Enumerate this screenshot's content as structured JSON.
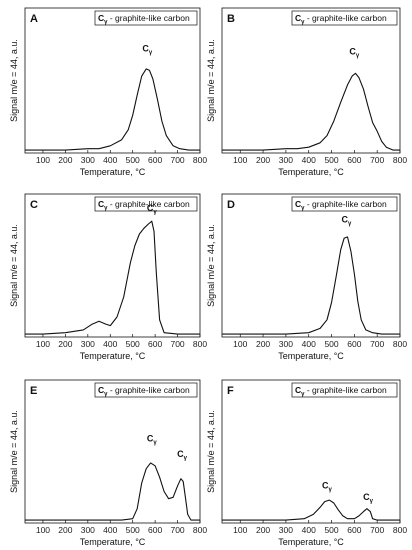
{
  "chart_data": [
    {
      "panel": "A",
      "type": "line",
      "legend": {
        "main": "C",
        "sub": "γ",
        "rest": " - graphite-like carbon"
      },
      "xlabel": "Temperature, °C",
      "ylabel": "Signal m/e = 44, a.u.",
      "xlim": [
        20,
        800
      ],
      "ylim": [
        0,
        1
      ],
      "xticks": [
        100,
        200,
        300,
        400,
        500,
        600,
        700,
        800
      ],
      "peak_labels": [
        {
          "main": "C",
          "sub": "γ",
          "x": 565,
          "y": 0.7
        }
      ],
      "series": [
        {
          "x": [
            20,
            100,
            200,
            300,
            350,
            400,
            450,
            480,
            500,
            520,
            540,
            560,
            575,
            590,
            610,
            630,
            650,
            680,
            710,
            750,
            800
          ],
          "y": [
            0.02,
            0.02,
            0.02,
            0.03,
            0.03,
            0.05,
            0.09,
            0.16,
            0.26,
            0.4,
            0.53,
            0.58,
            0.57,
            0.51,
            0.37,
            0.22,
            0.12,
            0.05,
            0.03,
            0.02,
            0.02
          ]
        }
      ]
    },
    {
      "panel": "B",
      "type": "line",
      "legend": {
        "main": "C",
        "sub": "γ",
        "rest": " - graphite-like carbon"
      },
      "xlabel": "Temperature, °C",
      "ylabel": "Signal m/e = 44, a.u.",
      "xlim": [
        20,
        800
      ],
      "ylim": [
        0,
        1
      ],
      "xticks": [
        100,
        200,
        300,
        400,
        500,
        600,
        700,
        800
      ],
      "peak_labels": [
        {
          "main": "C",
          "sub": "γ",
          "x": 600,
          "y": 0.68
        }
      ],
      "series": [
        {
          "x": [
            20,
            100,
            200,
            300,
            350,
            400,
            450,
            480,
            510,
            540,
            570,
            590,
            605,
            620,
            640,
            660,
            680,
            700,
            720,
            740,
            770,
            800
          ],
          "y": [
            0.02,
            0.02,
            0.02,
            0.03,
            0.03,
            0.04,
            0.07,
            0.12,
            0.22,
            0.35,
            0.47,
            0.53,
            0.55,
            0.52,
            0.44,
            0.32,
            0.21,
            0.15,
            0.08,
            0.04,
            0.02,
            0.02
          ]
        }
      ]
    },
    {
      "panel": "C",
      "type": "line",
      "legend": {
        "main": "C",
        "sub": "γ",
        "rest": " - graphite-like carbon"
      },
      "xlabel": "Temperature, °C",
      "ylabel": "Signal m/e = 44, a.u.",
      "xlim": [
        20,
        800
      ],
      "ylim": [
        0,
        1
      ],
      "xticks": [
        100,
        200,
        300,
        400,
        500,
        600,
        700,
        800
      ],
      "peak_labels": [
        {
          "main": "C",
          "sub": "γ",
          "x": 585,
          "y": 0.88
        }
      ],
      "series": [
        {
          "x": [
            20,
            100,
            200,
            280,
            320,
            350,
            380,
            400,
            430,
            460,
            490,
            510,
            530,
            550,
            570,
            585,
            595,
            605,
            620,
            640,
            700,
            800
          ],
          "y": [
            0.02,
            0.02,
            0.03,
            0.05,
            0.09,
            0.11,
            0.09,
            0.08,
            0.14,
            0.28,
            0.52,
            0.64,
            0.72,
            0.76,
            0.79,
            0.81,
            0.74,
            0.45,
            0.12,
            0.03,
            0.02,
            0.02
          ]
        }
      ]
    },
    {
      "panel": "D",
      "type": "line",
      "legend": {
        "main": "C",
        "sub": "γ",
        "rest": " - graphite-like carbon"
      },
      "xlabel": "Temperature, °C",
      "ylabel": "Signal m/e = 44, a.u.",
      "xlim": [
        20,
        800
      ],
      "ylim": [
        0,
        1
      ],
      "xticks": [
        100,
        200,
        300,
        400,
        500,
        600,
        700,
        800
      ],
      "peak_labels": [
        {
          "main": "C",
          "sub": "γ",
          "x": 565,
          "y": 0.8
        }
      ],
      "series": [
        {
          "x": [
            20,
            100,
            200,
            300,
            400,
            450,
            480,
            500,
            520,
            540,
            555,
            570,
            585,
            600,
            615,
            630,
            650,
            680,
            720,
            800
          ],
          "y": [
            0.02,
            0.02,
            0.02,
            0.02,
            0.03,
            0.06,
            0.12,
            0.24,
            0.42,
            0.61,
            0.69,
            0.7,
            0.6,
            0.44,
            0.25,
            0.12,
            0.05,
            0.03,
            0.02,
            0.02
          ]
        }
      ]
    },
    {
      "panel": "E",
      "type": "line",
      "legend": {
        "main": "C",
        "sub": "γ",
        "rest": " - graphite-like carbon"
      },
      "xlabel": "Temperature, °C",
      "ylabel": "Signal m/e = 44, a.u.",
      "xlim": [
        20,
        800
      ],
      "ylim": [
        0,
        1
      ],
      "xticks": [
        100,
        200,
        300,
        400,
        500,
        600,
        700,
        800
      ],
      "peak_labels": [
        {
          "main": "C",
          "sub": "γ",
          "x": 585,
          "y": 0.57
        },
        {
          "main": "C",
          "sub": "γ",
          "x": 720,
          "y": 0.46
        }
      ],
      "series": [
        {
          "x": [
            20,
            100,
            200,
            300,
            400,
            450,
            500,
            520,
            540,
            560,
            580,
            600,
            620,
            640,
            660,
            680,
            700,
            715,
            725,
            735,
            745,
            760,
            800
          ],
          "y": [
            0.02,
            0.02,
            0.02,
            0.02,
            0.02,
            0.02,
            0.03,
            0.1,
            0.28,
            0.38,
            0.42,
            0.4,
            0.32,
            0.22,
            0.17,
            0.18,
            0.26,
            0.31,
            0.29,
            0.18,
            0.06,
            0.02,
            0.02
          ]
        }
      ]
    },
    {
      "panel": "F",
      "type": "line",
      "legend": {
        "main": "C",
        "sub": "γ",
        "rest": " - graphite-like carbon"
      },
      "xlabel": "Temperature, °C",
      "ylabel": "Signal m/e = 44, a.u.",
      "xlim": [
        20,
        800
      ],
      "ylim": [
        0,
        1
      ],
      "xticks": [
        100,
        200,
        300,
        400,
        500,
        600,
        700,
        800
      ],
      "peak_labels": [
        {
          "main": "C",
          "sub": "γ",
          "x": 480,
          "y": 0.24
        },
        {
          "main": "C",
          "sub": "γ",
          "x": 660,
          "y": 0.16
        }
      ],
      "series": [
        {
          "x": [
            20,
            100,
            200,
            300,
            380,
            420,
            450,
            470,
            490,
            510,
            530,
            550,
            570,
            600,
            620,
            640,
            655,
            670,
            680,
            700,
            740,
            800
          ],
          "y": [
            0.02,
            0.02,
            0.02,
            0.02,
            0.03,
            0.06,
            0.11,
            0.15,
            0.16,
            0.14,
            0.09,
            0.05,
            0.03,
            0.03,
            0.05,
            0.08,
            0.1,
            0.08,
            0.03,
            0.02,
            0.02,
            0.02
          ]
        }
      ]
    }
  ]
}
